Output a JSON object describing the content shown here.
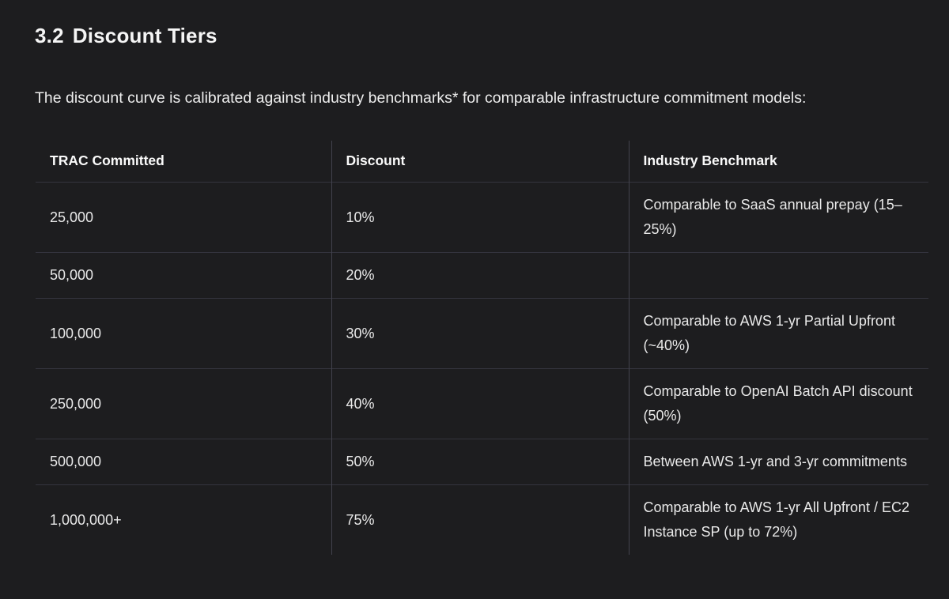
{
  "page": {
    "background_color": "#1d1d1f",
    "text_color": "#ececec",
    "border_color_horizontal": "#34343e",
    "border_color_vertical": "#42424d"
  },
  "heading": {
    "number": "3.2",
    "title": "Discount Tiers"
  },
  "intro": "The discount curve is calibrated against industry benchmarks* for comparable infrastructure commitment models:",
  "table": {
    "columns": [
      "TRAC Committed",
      "Discount",
      "Industry Benchmark"
    ],
    "rows": [
      {
        "trac": "25,000",
        "discount": "10%",
        "benchmark": "Comparable to SaaS annual prepay (15–25%)"
      },
      {
        "trac": "50,000",
        "discount": "20%",
        "benchmark": ""
      },
      {
        "trac": "100,000",
        "discount": "30%",
        "benchmark": "Comparable to AWS 1-yr Partial Upfront (~40%)"
      },
      {
        "trac": "250,000",
        "discount": "40%",
        "benchmark": "Comparable to OpenAI Batch API discount (50%)"
      },
      {
        "trac": "500,000",
        "discount": "50%",
        "benchmark": "Between AWS 1-yr and 3-yr commitments"
      },
      {
        "trac": "1,000,000+",
        "discount": "75%",
        "benchmark": "Comparable to AWS 1-yr All Upfront / EC2 Instance SP (up to 72%)"
      }
    ]
  }
}
